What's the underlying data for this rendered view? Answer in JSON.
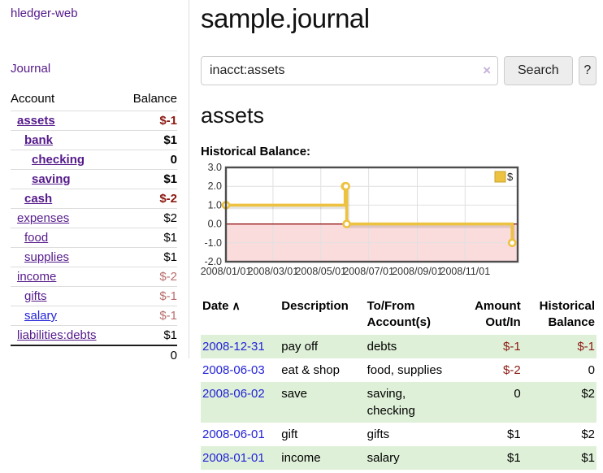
{
  "sidebar": {
    "app_title": "hledger-web",
    "nav_journal": "Journal",
    "accounts_table": {
      "account_header": "Account",
      "balance_header": "Balance",
      "rows": [
        {
          "name": "assets",
          "indent": 0,
          "emph": true,
          "blue": false,
          "balance": "$-1",
          "neg": "strong"
        },
        {
          "name": "bank",
          "indent": 1,
          "emph": true,
          "blue": false,
          "balance": "$1",
          "neg": "none"
        },
        {
          "name": "checking",
          "indent": 2,
          "emph": true,
          "blue": false,
          "balance": "0",
          "neg": "none"
        },
        {
          "name": "saving",
          "indent": 2,
          "emph": true,
          "blue": false,
          "balance": "$1",
          "neg": "none"
        },
        {
          "name": "cash",
          "indent": 1,
          "emph": true,
          "blue": false,
          "balance": "$-2",
          "neg": "strong"
        },
        {
          "name": "expenses",
          "indent": 0,
          "emph": false,
          "blue": false,
          "balance": "$2",
          "neg": "none"
        },
        {
          "name": "food",
          "indent": 1,
          "emph": false,
          "blue": false,
          "balance": "$1",
          "neg": "none"
        },
        {
          "name": "supplies",
          "indent": 1,
          "emph": false,
          "blue": false,
          "balance": "$1",
          "neg": "none"
        },
        {
          "name": "income",
          "indent": 0,
          "emph": false,
          "blue": false,
          "balance": "$-2",
          "neg": "soft"
        },
        {
          "name": "gifts",
          "indent": 1,
          "emph": false,
          "blue": false,
          "balance": "$-1",
          "neg": "soft"
        },
        {
          "name": "salary",
          "indent": 1,
          "emph": false,
          "blue": true,
          "balance": "$-1",
          "neg": "soft"
        },
        {
          "name": "liabilities:debts",
          "indent": 0,
          "emph": false,
          "blue": false,
          "balance": "$1",
          "neg": "none"
        }
      ],
      "total": "0"
    }
  },
  "header": {
    "title": "sample.journal"
  },
  "search": {
    "value": "inacct:assets",
    "clear_icon": "×",
    "button_label": "Search",
    "help_label": "?"
  },
  "account_page": {
    "title": "assets",
    "chart_label": "Historical Balance:"
  },
  "chart_data": {
    "type": "line",
    "style": "step-after",
    "title": "Historical Balance:",
    "legend": [
      {
        "label": "$",
        "color": "#edc240"
      }
    ],
    "legend_position": "top-right",
    "series": [
      {
        "name": "$",
        "x_dates": [
          "2008-01-01",
          "2008-06-01",
          "2008-06-02",
          "2008-06-03",
          "2008-12-31"
        ],
        "x_days": [
          0,
          152,
          153,
          154,
          365
        ],
        "values": [
          1,
          2,
          2,
          0,
          -1
        ]
      }
    ],
    "ylim": [
      -2,
      3
    ],
    "yticks": [
      {
        "v": 3,
        "label": "3.0"
      },
      {
        "v": 2,
        "label": "2.0"
      },
      {
        "v": 1,
        "label": "1.0"
      },
      {
        "v": 0,
        "label": "0.0"
      },
      {
        "v": -1,
        "label": "-1.0"
      },
      {
        "v": -2,
        "label": "-2.0"
      }
    ],
    "xticks": [
      {
        "day": 0,
        "label": "2008/01/01"
      },
      {
        "day": 60,
        "label": "2008/03/01"
      },
      {
        "day": 121,
        "label": "2008/05/01"
      },
      {
        "day": 182,
        "label": "2008/07/01"
      },
      {
        "day": 244,
        "label": "2008/09/01"
      },
      {
        "day": 305,
        "label": "2008/11/01"
      }
    ],
    "x_domain_days": [
      0,
      372
    ],
    "grid": true,
    "colors": {
      "line": "#edc240",
      "marker_fill": "#ffffff",
      "negative_region": "#fbdcdc",
      "zero_line": "#8b0000",
      "grid": "#e0e0e0",
      "border": "#4d4d4d",
      "tick_text": "#333333"
    }
  },
  "transactions": {
    "headers": {
      "date": "Date",
      "sort_arrow": "∧",
      "description": "Description",
      "accounts": "To/From Account(s)",
      "amount": "Amount Out/In",
      "balance": "Historical Balance"
    },
    "rows": [
      {
        "date": "2008-12-31",
        "description": "pay off",
        "accounts": "debts",
        "amount": "$-1",
        "amount_neg": true,
        "balance": "$-1",
        "balance_neg": true
      },
      {
        "date": "2008-06-03",
        "description": "eat & shop",
        "accounts": "food, supplies",
        "amount": "$-2",
        "amount_neg": true,
        "balance": "0",
        "balance_neg": false
      },
      {
        "date": "2008-06-02",
        "description": "save",
        "accounts": "saving, checking",
        "amount": "0",
        "amount_neg": false,
        "balance": "$2",
        "balance_neg": false
      },
      {
        "date": "2008-06-01",
        "description": "gift",
        "accounts": "gifts",
        "amount": "$1",
        "amount_neg": false,
        "balance": "$2",
        "balance_neg": false
      },
      {
        "date": "2008-01-01",
        "description": "income",
        "accounts": "salary",
        "amount": "$1",
        "amount_neg": false,
        "balance": "$1",
        "balance_neg": false
      }
    ]
  }
}
